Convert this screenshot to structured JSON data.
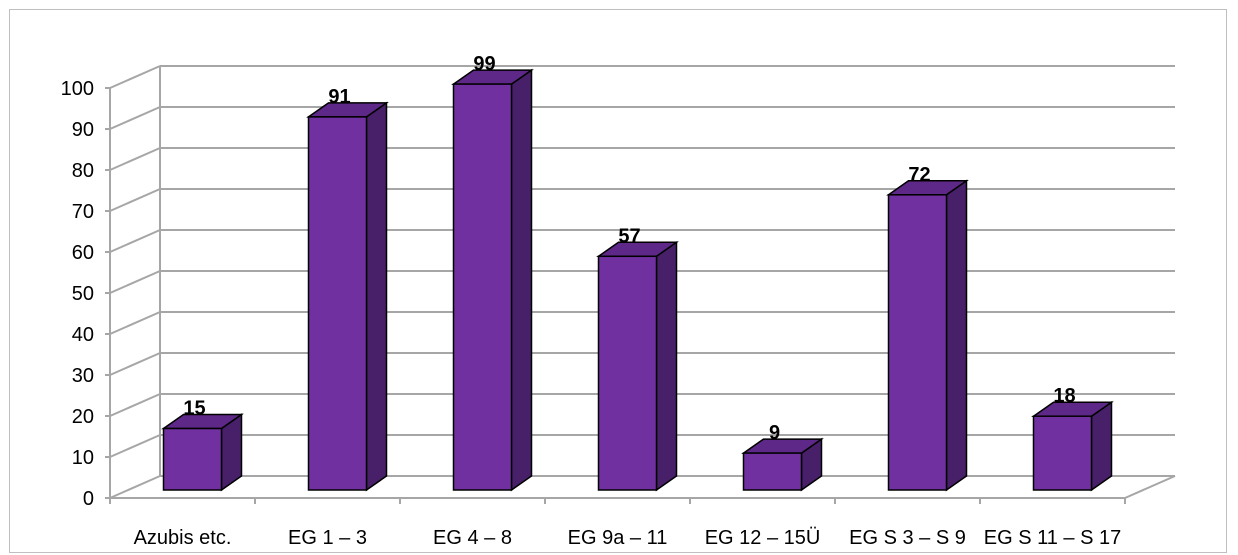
{
  "chart_data": {
    "type": "bar",
    "style": "3d-column",
    "categories": [
      "Azubis etc.",
      "EG 1 – 3",
      "EG 4 – 8",
      "EG 9a – 11",
      "EG 12 – 15Ü",
      "EG S 3 – S 9",
      "EG S 11 – S 17"
    ],
    "values": [
      15,
      91,
      99,
      57,
      9,
      72,
      18
    ],
    "ylim": [
      0,
      100
    ],
    "yticks": [
      0,
      10,
      20,
      30,
      40,
      50,
      60,
      70,
      80,
      90,
      100
    ],
    "grid": true,
    "legend": "none",
    "data_labels": true,
    "colors": {
      "bar_front": "#7030a0",
      "bar_top": "#5e2888",
      "bar_side": "#48206a",
      "gridline": "#a6a6a6",
      "axis": "#a6a6a6"
    }
  }
}
